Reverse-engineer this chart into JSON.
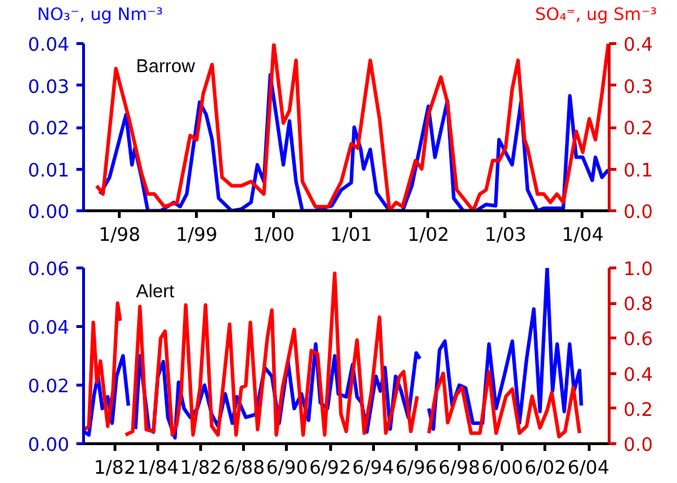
{
  "chart_data": [
    {
      "type": "line",
      "ylabel": "NO₃⁻, ug Nm⁻³",
      "y2label": "SO₄⁼, ug Sm⁻³",
      "annotations": [
        "Barrow"
      ],
      "grid": false,
      "xlim": [
        "1997-07-15",
        "2004-05-05"
      ],
      "xticks": [
        {
          "value": "1998-01-01",
          "label": "1/98"
        },
        {
          "value": "1999-01-01",
          "label": "1/99"
        },
        {
          "value": "2000-01-01",
          "label": "1/00"
        },
        {
          "value": "2001-01-01",
          "label": "1/01"
        },
        {
          "value": "2002-01-01",
          "label": "1/02"
        },
        {
          "value": "2003-01-01",
          "label": "1/03"
        },
        {
          "value": "2004-01-01",
          "label": "1/04"
        }
      ],
      "ylim": [
        0,
        0.04
      ],
      "yticks": [
        {
          "value": 0,
          "label": "0.00"
        },
        {
          "value": 0.01,
          "label": "0.01"
        },
        {
          "value": 0.02,
          "label": "0.02"
        },
        {
          "value": 0.03,
          "label": "0.03"
        },
        {
          "value": 0.04,
          "label": "0.04"
        }
      ],
      "y2lim": [
        0,
        0.4
      ],
      "y2ticks": [
        {
          "value": 0,
          "label": "0.0"
        },
        {
          "value": 0.1,
          "label": "0.1"
        },
        {
          "value": 0.2,
          "label": "0.2"
        },
        {
          "value": 0.3,
          "label": "0.3"
        },
        {
          "value": 0.4,
          "label": "0.4"
        }
      ],
      "series": [
        {
          "color": "#0000ff",
          "x": [
            "1997-10-01",
            "1997-11-15",
            "1998-02-01",
            "1998-03-01",
            "1998-03-15",
            "1998-04-15",
            "1998-05-15",
            "1998-07-15",
            "1998-09-15",
            "1998-10-15",
            "1998-11-15",
            "1999-01-15",
            "1999-02-15",
            "1999-03-15",
            "1999-04-15",
            "1999-06-15",
            "1999-08-01",
            "1999-09-15",
            "1999-10-15",
            "1999-11-15",
            "1999-12-15",
            "2000-01-15",
            "2000-02-15",
            "2000-03-15",
            "2000-04-15",
            "2000-05-15",
            "2000-07-15",
            "2000-10-01",
            "2000-11-15",
            "2001-01-01",
            "2001-01-15",
            "2001-02-15",
            "2001-03-01",
            "2001-04-01",
            "2001-05-01",
            "2001-07-01",
            "2001-09-01",
            "2001-10-15",
            "2002-01-01",
            "2002-02-01",
            "2002-04-01",
            "2002-05-01",
            "2002-06-15",
            "2002-08-15",
            "2002-10-01",
            "2002-11-15",
            "2002-12-01",
            "2003-02-01",
            "2003-03-15",
            "2003-04-15",
            "2003-06-01",
            "2003-07-01",
            "2003-10-01",
            "2003-11-01",
            "2003-12-01",
            "2004-01-01",
            "2004-02-15",
            "2004-03-01",
            "2004-04-01",
            "2004-05-01"
          ],
          "values": [
            0.004,
            0.008,
            0.023,
            0.011,
            0.015,
            0.008,
            0.0,
            0.0,
            0.002,
            0.001,
            0.004,
            0.026,
            0.023,
            0.017,
            0.003,
            0.0,
            0.0004,
            0.002,
            0.011,
            0.007,
            0.0325,
            0.022,
            0.011,
            0.0215,
            0.007,
            0.0,
            0.0,
            0.0012,
            0.005,
            0.0067,
            0.02,
            0.0147,
            0.01,
            0.0147,
            0.0043,
            0.0,
            0.0,
            0.006,
            0.025,
            0.0128,
            0.0263,
            0.003,
            0.0,
            0.0,
            0.0015,
            0.0012,
            0.017,
            0.011,
            0.026,
            0.005,
            0.0,
            0.0006,
            0.0006,
            0.0275,
            0.0128,
            0.0128,
            0.0073,
            0.0128,
            0.008,
            0.0098
          ]
        },
        {
          "color": "#ff0000",
          "axis": "y2",
          "x": [
            "1997-09-15",
            "1997-10-15",
            "1997-12-15",
            "1998-02-15",
            "1998-04-15",
            "1998-05-15",
            "1998-06-15",
            "1998-08-01",
            "1998-10-01",
            "1998-12-01",
            "1999-01-01",
            "1999-02-01",
            "1999-03-15",
            "1999-05-01",
            "1999-06-15",
            "1999-08-01",
            "1999-09-15",
            "1999-11-15",
            "2000-01-01",
            "2000-02-15",
            "2000-03-15",
            "2000-04-15",
            "2000-05-15",
            "2000-07-15",
            "2000-09-15",
            "2000-11-15",
            "2001-01-01",
            "2001-02-01",
            "2001-04-01",
            "2001-05-15",
            "2001-07-01",
            "2001-08-01",
            "2001-09-01",
            "2001-11-01",
            "2001-12-01",
            "2002-01-01",
            "2002-03-01",
            "2002-04-01",
            "2002-05-15",
            "2002-07-01",
            "2002-08-01",
            "2002-09-01",
            "2002-10-01",
            "2002-11-01",
            "2002-12-01",
            "2003-01-01",
            "2003-02-01",
            "2003-03-01",
            "2003-04-01",
            "2003-04-15",
            "2003-06-01",
            "2003-07-01",
            "2003-08-01",
            "2003-09-01",
            "2003-10-01",
            "2003-12-01",
            "2004-01-01",
            "2004-02-01",
            "2004-03-01",
            "2004-04-01",
            "2004-05-01"
          ],
          "values": [
            0.06,
            0.04,
            0.34,
            0.22,
            0.09,
            0.04,
            0.04,
            0.01,
            0.02,
            0.18,
            0.17,
            0.28,
            0.35,
            0.08,
            0.06,
            0.06,
            0.07,
            0.04,
            0.4,
            0.21,
            0.24,
            0.36,
            0.07,
            0.01,
            0.01,
            0.07,
            0.16,
            0.15,
            0.36,
            0.22,
            0.0,
            0.02,
            0.01,
            0.12,
            0.1,
            0.23,
            0.32,
            0.26,
            0.05,
            0.02,
            0.0,
            0.04,
            0.05,
            0.12,
            0.12,
            0.15,
            0.29,
            0.36,
            0.17,
            0.15,
            0.04,
            0.04,
            0.02,
            0.04,
            0.02,
            0.19,
            0.14,
            0.22,
            0.17,
            0.28,
            0.4
          ]
        }
      ]
    },
    {
      "type": "line",
      "annotations": [
        "Alert"
      ],
      "grid": false,
      "xlim": [
        "1981-01-01",
        "2005-06-01"
      ],
      "xticks": [
        {
          "value": "1982-06-15",
          "label": "1/82"
        },
        {
          "value": "1984-06-15",
          "label": "1/84"
        },
        {
          "value": "1986-06-15",
          "label": "1/82"
        },
        {
          "value": "1988-06-15",
          "label": "6/88"
        },
        {
          "value": "1990-06-15",
          "label": "6/90"
        },
        {
          "value": "1992-06-15",
          "label": "6/92"
        },
        {
          "value": "1994-06-15",
          "label": "6/94"
        },
        {
          "value": "1996-06-15",
          "label": "6/96"
        },
        {
          "value": "1998-06-15",
          "label": "6/98"
        },
        {
          "value": "2000-06-15",
          "label": "6/00"
        },
        {
          "value": "2002-06-15",
          "label": "6/02"
        },
        {
          "value": "2004-06-15",
          "label": "6/04"
        }
      ],
      "ylim": [
        0,
        0.06
      ],
      "yticks": [
        {
          "value": 0,
          "label": "0.00"
        },
        {
          "value": 0.02,
          "label": "0.02"
        },
        {
          "value": 0.04,
          "label": "0.04"
        },
        {
          "value": 0.06,
          "label": "0.06"
        }
      ],
      "y2lim": [
        0,
        1.0
      ],
      "y2ticks": [
        {
          "value": 0,
          "label": "0.0"
        },
        {
          "value": 0.2,
          "label": "0.2"
        },
        {
          "value": 0.4,
          "label": "0.4"
        },
        {
          "value": 0.6,
          "label": "0.6"
        },
        {
          "value": 0.8,
          "label": "0.8"
        },
        {
          "value": 1,
          "label": "1.0"
        }
      ],
      "series": [
        {
          "color": "#0000ff",
          "x": [
            "1981-01-15",
            "1981-04-01",
            "1981-07-01",
            "1981-09-01",
            "1981-11-15",
            "1982-02-15",
            "1982-05-01",
            "1982-07-15",
            "1982-11-01",
            "1983-02-01",
            "1983-04-01",
            "1983-06-01",
            "1983-08-15",
            "1984-01-15",
            "1984-04-01",
            "1984-06-15",
            "1984-09-15",
            "1984-12-01",
            "1985-04-01",
            "1985-06-01",
            "1985-09-01",
            "1985-12-15",
            "1986-04-15",
            "1986-08-15",
            "1986-12-15",
            "1987-04-01",
            "1987-08-01",
            "1987-12-01",
            "1988-02-15",
            "1988-07-15",
            "1989-01-01",
            "1989-06-01",
            "1989-10-01",
            "1990-02-01",
            "1990-07-01",
            "1990-10-15",
            "1991-02-15",
            "1991-06-15",
            "1991-10-15",
            "1992-01-01",
            "1992-05-01",
            "1992-09-01",
            "1992-11-01",
            "1993-03-15",
            "1993-07-01",
            "1993-09-15",
            "1993-12-01",
            "1994-03-01",
            "1994-08-01",
            "1994-10-15",
            "1995-01-01",
            "1995-04-01",
            "1995-07-01",
            "1995-10-01",
            "1996-02-01",
            "1996-06-15",
            "1996-08-15",
            "1996-11-01",
            "1997-01-15",
            "1997-04-01",
            "1997-07-15",
            "1997-10-15",
            "1998-02-15",
            "1998-06-15",
            "1998-10-01",
            "1999-02-01",
            "1999-07-15",
            "1999-11-01",
            "2000-03-01",
            "2000-07-15",
            "2000-12-01",
            "2001-04-01",
            "2001-08-01",
            "2001-12-01",
            "2002-03-15",
            "2002-07-15",
            "2002-10-15",
            "2003-01-01",
            "2003-05-01",
            "2003-08-01",
            "2003-10-15",
            "2004-01-15",
            "2004-02-15"
          ],
          "values": [
            0.004,
            0.003,
            0.017,
            0.023,
            0.012,
            0.016,
            0.007,
            0.023,
            0.03,
            0.013,
            null,
            0.005,
            0.03,
            0.005,
            0.004,
            0.023,
            0.028,
            0.009,
            0.002,
            0.021,
            0.012,
            0.009,
            0.012,
            0.02,
            0.01,
            0.006,
            0.017,
            0.007,
            0.016,
            0.009,
            0.01,
            0.026,
            0.023,
            0.007,
            0.028,
            0.012,
            0.017,
            0.008,
            0.034,
            0.014,
            0.012,
            0.03,
            0.017,
            0.016,
            0.027,
            0.016,
            0.014,
            0.004,
            0.023,
            0.018,
            0.026,
            0.005,
            0.023,
            0.018,
            0.009,
            0.031,
            0.029,
            null,
            0.012,
            0.005,
            0.032,
            0.035,
            0.013,
            0.02,
            0.019,
            0.007,
            0.007,
            0.034,
            0.012,
            0.023,
            0.035,
            0.007,
            0.029,
            0.046,
            0.011,
            0.06,
            0.018,
            0.034,
            0.011,
            0.034,
            0.018,
            0.025,
            0.013
          ]
        },
        {
          "color": "#ff0000",
          "axis": "y2",
          "x": [
            "1981-01-15",
            "1981-04-01",
            "1981-06-15",
            "1981-08-15",
            "1981-10-15",
            "1982-02-15",
            "1982-05-15",
            "1982-08-01",
            "1982-09-15",
            "1982-11-01",
            "1982-12-15",
            "1983-04-15",
            "1983-08-15",
            "1983-12-01",
            "1984-04-01",
            "1984-08-01",
            "1984-10-15",
            "1985-02-15",
            "1985-05-01",
            "1985-07-15",
            "1985-10-01",
            "1986-02-01",
            "1986-06-01",
            "1986-09-01",
            "1986-12-15",
            "1987-04-01",
            "1987-10-15",
            "1988-02-01",
            "1988-05-01",
            "1988-07-15",
            "1988-10-01",
            "1989-02-01",
            "1989-07-15",
            "1989-10-01",
            "1989-12-15",
            "1990-04-01",
            "1990-10-15",
            "1991-03-15",
            "1991-08-01",
            "1991-11-15",
            "1992-03-15",
            "1992-09-01",
            "1992-12-15",
            "1993-03-15",
            "1993-05-15",
            "1993-09-15",
            "1994-01-15",
            "1994-05-15",
            "1994-10-01",
            "1995-01-15",
            "1995-05-01",
            "1995-09-01",
            "1995-11-15",
            "1996-03-15",
            "1996-07-01",
            "1996-10-01",
            "1997-01-15",
            "1997-05-15",
            "1997-09-15",
            "1997-12-01",
            "1998-05-01",
            "1998-08-01",
            "1999-01-01",
            "1999-06-01",
            "1999-11-01",
            "2000-03-01",
            "2000-08-15",
            "2000-12-01",
            "2001-04-01",
            "2001-08-01",
            "2001-11-01",
            "2002-03-15",
            "2002-07-15",
            "2002-10-01",
            "2003-02-01",
            "2003-05-15",
            "2003-10-01",
            "2004-01-15"
          ],
          "values": [
            0.08,
            0.1,
            0.69,
            0.35,
            0.47,
            0.1,
            0.3,
            0.8,
            0.7,
            null,
            0.05,
            0.07,
            0.78,
            0.08,
            0.07,
            0.6,
            0.64,
            0.05,
            0.11,
            0.29,
            0.79,
            0.05,
            0.32,
            0.79,
            0.1,
            0.05,
            0.68,
            0.05,
            0.32,
            0.33,
            0.69,
            0.08,
            0.6,
            0.76,
            0.05,
            0.32,
            0.65,
            0.05,
            0.53,
            0.51,
            0.05,
            0.97,
            0.17,
            0.07,
            0.27,
            0.59,
            0.06,
            0.29,
            0.72,
            0.06,
            0.18,
            0.38,
            0.41,
            0.07,
            0.27,
            null,
            0.06,
            0.29,
            0.4,
            0.12,
            0.28,
            0.32,
            0.06,
            0.06,
            0.41,
            0.06,
            0.27,
            0.31,
            0.06,
            0.1,
            0.27,
            0.09,
            0.19,
            0.29,
            0.04,
            0.07,
            0.32,
            0.06
          ]
        }
      ]
    }
  ]
}
